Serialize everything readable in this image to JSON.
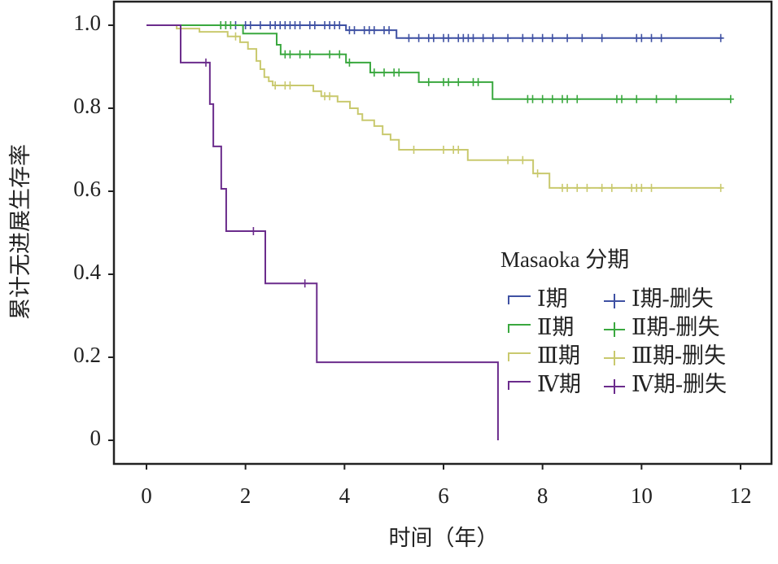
{
  "chart_data": {
    "type": "step",
    "xlabel": "时间（年）",
    "ylabel": "累计无进展生存率",
    "xlim": [
      0,
      12
    ],
    "xticks": [
      0,
      2,
      4,
      6,
      8,
      10,
      12
    ],
    "ylim": [
      0,
      1.05
    ],
    "yticks": [
      0,
      0.2,
      0.4,
      0.6,
      0.8,
      {
        "value": 1,
        "label": "1.0"
      }
    ],
    "legend_title": "Masaoka 分期",
    "legend": "right",
    "series": [
      {
        "name": "Ⅰ期",
        "censor_name": "Ⅰ期-删失",
        "color": "#3f51a3",
        "x": [
          0,
          4.03,
          5.05,
          11.63
        ],
        "values": [
          1,
          0.988,
          0.969,
          0.969
        ],
        "censor_x": [
          1.5,
          1.6,
          1.8,
          2.0,
          2.1,
          2.3,
          2.5,
          2.6,
          2.7,
          2.8,
          2.9,
          3.0,
          3.1,
          3.3,
          3.4,
          3.6,
          3.7,
          3.8,
          3.9,
          4.1,
          4.2,
          4.4,
          4.5,
          4.6,
          4.8,
          4.9,
          5.3,
          5.5,
          5.7,
          5.8,
          6.0,
          6.1,
          6.3,
          6.4,
          6.5,
          6.6,
          6.8,
          7.0,
          7.3,
          7.6,
          7.8,
          8.0,
          8.2,
          8.5,
          8.8,
          9.2,
          9.9,
          10.0,
          10.2,
          10.4,
          11.6
        ]
      },
      {
        "name": "Ⅱ期",
        "censor_name": "Ⅱ期-删失",
        "color": "#3aa83f",
        "x": [
          0,
          1.95,
          2.63,
          2.71,
          4.03,
          4.52,
          5.5,
          6.99,
          11.8
        ],
        "values": [
          1,
          0.98,
          0.953,
          0.93,
          0.91,
          0.886,
          0.863,
          0.822,
          0.822
        ],
        "censor_x": [
          1.5,
          1.6,
          1.7,
          2.8,
          2.9,
          3.1,
          3.3,
          3.7,
          3.9,
          4.1,
          4.6,
          4.8,
          5.0,
          5.1,
          5.7,
          6.0,
          6.1,
          6.3,
          6.6,
          6.7,
          7.7,
          7.8,
          8.0,
          8.2,
          8.4,
          8.5,
          8.7,
          9.5,
          9.6,
          9.9,
          10.3,
          10.7,
          11.8
        ]
      },
      {
        "name": "Ⅲ期",
        "censor_name": "Ⅲ期-删失",
        "color": "#c9c96e",
        "x": [
          0,
          0.61,
          1.07,
          1.64,
          1.89,
          2.05,
          2.22,
          2.3,
          2.38,
          2.47,
          2.55,
          3.37,
          3.53,
          3.86,
          4.11,
          4.27,
          4.36,
          4.6,
          4.77,
          4.93,
          5.1,
          6.49,
          7.81,
          8.14,
          11.62
        ],
        "values": [
          1,
          0.992,
          0.984,
          0.973,
          0.959,
          0.943,
          0.914,
          0.894,
          0.875,
          0.865,
          0.855,
          0.841,
          0.829,
          0.816,
          0.8,
          0.786,
          0.771,
          0.757,
          0.737,
          0.724,
          0.7,
          0.675,
          0.643,
          0.608,
          0.608
        ],
        "censor_x": [
          1.8,
          2.6,
          2.8,
          2.9,
          3.6,
          3.7,
          5.4,
          6.0,
          6.2,
          6.3,
          7.3,
          7.6,
          7.9,
          8.4,
          8.5,
          8.7,
          8.9,
          9.2,
          9.4,
          9.8,
          9.9,
          10.0,
          10.2,
          11.6
        ]
      },
      {
        "name": "Ⅳ期",
        "censor_name": "Ⅳ期-删失",
        "color": "#6b2c8c",
        "x": [
          0,
          0.69,
          1.28,
          1.35,
          1.51,
          1.61,
          2.4,
          3.44,
          7.1
        ],
        "values": [
          1,
          0.91,
          0.81,
          0.708,
          0.606,
          0.504,
          0.378,
          0.188,
          0
        ],
        "censor_x": [
          1.2,
          2.16,
          3.2
        ]
      }
    ]
  }
}
